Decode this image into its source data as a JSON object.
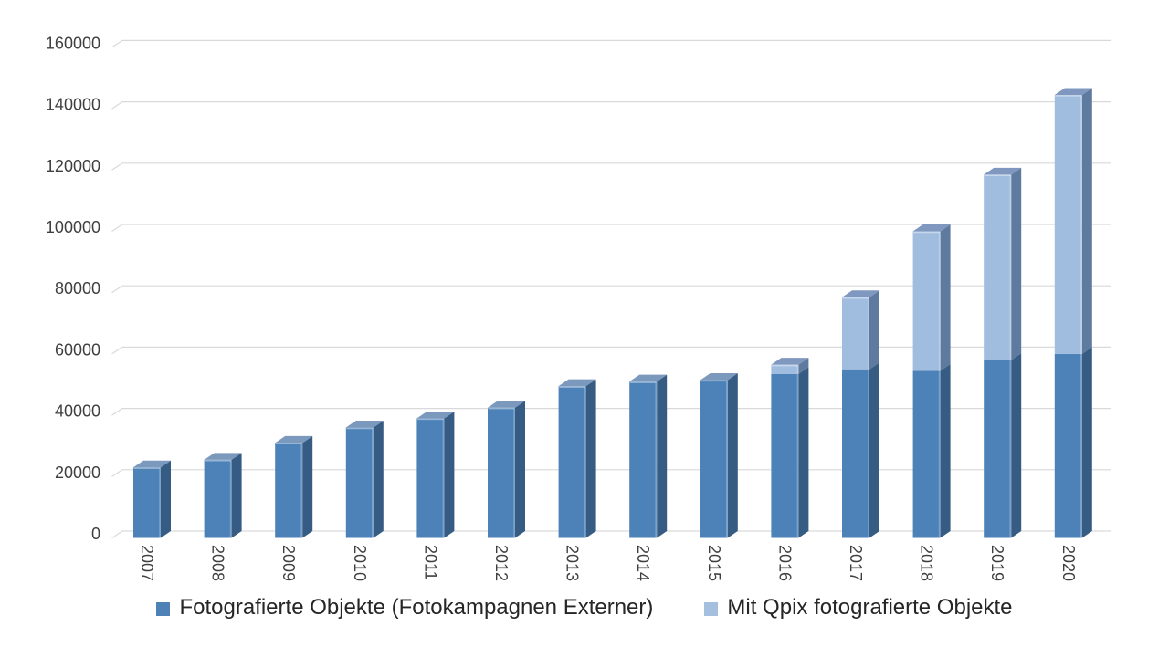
{
  "chart_data": {
    "type": "bar",
    "stacked": true,
    "pseudo_3d": true,
    "title": "",
    "xlabel": "",
    "ylabel": "",
    "categories": [
      "2007",
      "2008",
      "2009",
      "2010",
      "2011",
      "2012",
      "2013",
      "2014",
      "2015",
      "2016",
      "2017",
      "2018",
      "2019",
      "2020"
    ],
    "series": [
      {
        "name": "Fotografierte Objekte (Fotokampagnen Externer)",
        "values": [
          23000,
          25500,
          31000,
          36000,
          39000,
          42500,
          49500,
          51000,
          51500,
          53500,
          55000,
          54500,
          58000,
          60000
        ],
        "colors": {
          "front": "#4d82b8",
          "top": "#7b98bd",
          "side": "#375c84",
          "legend": "#4e81b5"
        }
      },
      {
        "name": "Mit Qpix fotografierte Objekte",
        "values": [
          0,
          0,
          0,
          0,
          0,
          0,
          0,
          0,
          0,
          3000,
          23500,
          45500,
          60500,
          84500
        ],
        "colors": {
          "front": "#a0bcdf",
          "top": "#8098bf",
          "side": "#5f7a9f",
          "legend": "#a5c0de"
        }
      }
    ],
    "ylim": [
      0,
      160000
    ],
    "ytick_step": 20000,
    "y_tick_labels": [
      "0",
      "20000",
      "40000",
      "60000",
      "80000",
      "100000",
      "120000",
      "140000",
      "160000"
    ],
    "grid": true,
    "gridline_color": "#d9d9d9",
    "axis_label_color": "#3f3f3f",
    "legend_text_color": "#262626",
    "legend_position": "bottom",
    "background": "#ffffff"
  }
}
